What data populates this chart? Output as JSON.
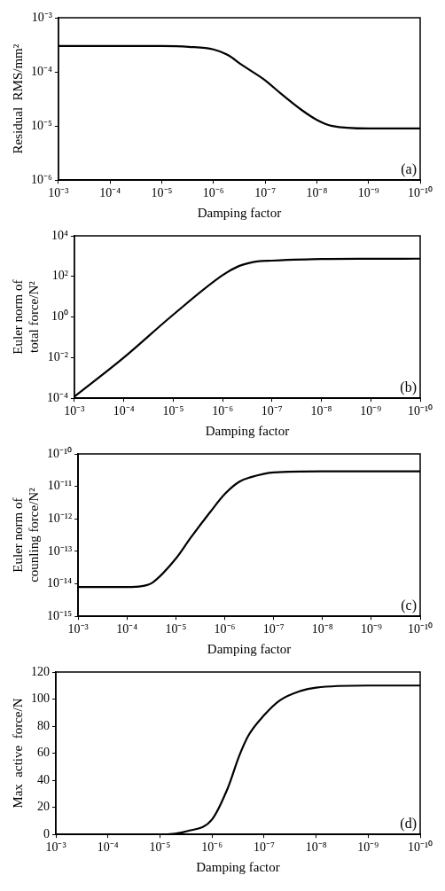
{
  "chart_data": [
    {
      "type": "line",
      "xlabel": "Damping factor",
      "ylabel": "Residual  RMS/mm²",
      "log": "xy",
      "grid": false,
      "marker": "none",
      "annotations": [
        "(a)"
      ],
      "xlim": [
        0.001,
        1e-10
      ],
      "xticks": [
        {
          "value": 0.001,
          "label": "10⁻³"
        },
        {
          "value": 0.0001,
          "label": "10⁻⁴"
        },
        {
          "value": 1e-05,
          "label": "10⁻⁵"
        },
        {
          "value": 1e-06,
          "label": "10⁻⁶"
        },
        {
          "value": 1e-07,
          "label": "10⁻⁷"
        },
        {
          "value": 1e-08,
          "label": "10⁻⁸"
        },
        {
          "value": 1e-09,
          "label": "10⁻⁹"
        },
        {
          "value": 1e-10,
          "label": "10⁻¹⁰"
        }
      ],
      "ylim": [
        1e-06,
        0.001
      ],
      "yticks": [
        {
          "value": 1e-06,
          "label": "10⁻⁶"
        },
        {
          "value": 1e-05,
          "label": "10⁻⁵"
        },
        {
          "value": 0.0001,
          "label": "10⁻⁴"
        },
        {
          "value": 0.001,
          "label": "10⁻³"
        }
      ],
      "x": [
        0.001,
        0.0001,
        1e-05,
        3e-06,
        1e-06,
        5e-07,
        3e-07,
        1e-07,
        5e-08,
        2e-08,
        1e-08,
        5e-09,
        1e-09,
        1e-10
      ],
      "series": [
        {
          "color": "#000000",
          "values": [
            0.0003,
            0.0003,
            0.0003,
            0.00029,
            0.00026,
            0.0002,
            0.00014,
            7e-05,
            4e-05,
            2e-05,
            1.3e-05,
            1e-05,
            9e-06,
            9e-06
          ]
        }
      ]
    },
    {
      "type": "line",
      "xlabel": "Damping factor",
      "ylabel": "Euler norm of total force/N²",
      "log": "xy",
      "grid": false,
      "marker": "none",
      "annotations": [
        "(b)"
      ],
      "xlim": [
        0.001,
        1e-10
      ],
      "xticks": [
        {
          "value": 0.001,
          "label": "10⁻³"
        },
        {
          "value": 0.0001,
          "label": "10⁻⁴"
        },
        {
          "value": 1e-05,
          "label": "10⁻⁵"
        },
        {
          "value": 1e-06,
          "label": "10⁻⁶"
        },
        {
          "value": 1e-07,
          "label": "10⁻⁷"
        },
        {
          "value": 1e-08,
          "label": "10⁻⁸"
        },
        {
          "value": 1e-09,
          "label": "10⁻⁹"
        },
        {
          "value": 1e-10,
          "label": "10⁻¹⁰"
        }
      ],
      "ylim": [
        0.0001,
        10000
      ],
      "yticks": [
        {
          "value": 0.0001,
          "label": "10⁻⁴"
        },
        {
          "value": 0.01,
          "label": "10⁻²"
        },
        {
          "value": 1,
          "label": "10⁰"
        },
        {
          "value": 100,
          "label": "10²"
        },
        {
          "value": 10000,
          "label": "10⁴"
        }
      ],
      "x": [
        0.001,
        0.0001,
        1e-05,
        1e-06,
        5e-07,
        3e-07,
        2e-07,
        1e-07,
        1e-08,
        1e-09,
        1e-10
      ],
      "series": [
        {
          "color": "#000000",
          "values": [
            0.00012,
            0.01,
            1.3,
            115,
            300,
            450,
            550,
            600,
            720,
            740,
            750
          ]
        }
      ]
    },
    {
      "type": "line",
      "xlabel": "Damping factor",
      "ylabel": "Euler norm of counling force/N²",
      "log": "xy",
      "grid": false,
      "marker": "none",
      "annotations": [
        "(c)"
      ],
      "xlim": [
        0.001,
        1e-10
      ],
      "xticks": [
        {
          "value": 0.001,
          "label": "10⁻³"
        },
        {
          "value": 0.0001,
          "label": "10⁻⁴"
        },
        {
          "value": 1e-05,
          "label": "10⁻⁵"
        },
        {
          "value": 1e-06,
          "label": "10⁻⁶"
        },
        {
          "value": 1e-07,
          "label": "10⁻⁷"
        },
        {
          "value": 1e-08,
          "label": "10⁻⁸"
        },
        {
          "value": 1e-09,
          "label": "10⁻⁹"
        },
        {
          "value": 1e-10,
          "label": "10⁻¹⁰"
        }
      ],
      "ylim": [
        1e-15,
        1e-10
      ],
      "yticks": [
        {
          "value": 1e-15,
          "label": "10⁻¹⁵"
        },
        {
          "value": 1e-14,
          "label": "10⁻¹⁴"
        },
        {
          "value": 1e-13,
          "label": "10⁻¹³"
        },
        {
          "value": 1e-12,
          "label": "10⁻¹²"
        },
        {
          "value": 1e-11,
          "label": "10⁻¹¹"
        },
        {
          "value": 1e-10,
          "label": "10⁻¹⁰"
        }
      ],
      "x": [
        0.001,
        0.0001,
        5e-05,
        3e-05,
        1e-05,
        5e-06,
        2e-06,
        1e-06,
        5e-07,
        3e-07,
        1e-07,
        1e-08,
        1e-10
      ],
      "series": [
        {
          "color": "#000000",
          "values": [
            8e-15,
            8e-15,
            8.5e-15,
            1.1e-14,
            6e-14,
            2.6e-13,
            1.6e-12,
            5.8e-12,
            1.4e-11,
            1.9e-11,
            2.7e-11,
            2.9e-11,
            2.9e-11
          ]
        }
      ]
    },
    {
      "type": "line",
      "xlabel": "Damping factor",
      "ylabel": "Max  active  force/N",
      "log": "x",
      "grid": false,
      "marker": "none",
      "annotations": [
        "(d)"
      ],
      "xlim": [
        0.001,
        1e-10
      ],
      "xticks": [
        {
          "value": 0.001,
          "label": "10⁻³"
        },
        {
          "value": 0.0001,
          "label": "10⁻⁴"
        },
        {
          "value": 1e-05,
          "label": "10⁻⁵"
        },
        {
          "value": 1e-06,
          "label": "10⁻⁶"
        },
        {
          "value": 1e-07,
          "label": "10⁻⁷"
        },
        {
          "value": 1e-08,
          "label": "10⁻⁸"
        },
        {
          "value": 1e-09,
          "label": "10⁻⁹"
        },
        {
          "value": 1e-10,
          "label": "10⁻¹⁰"
        }
      ],
      "ylim": [
        0,
        120
      ],
      "yticks": [
        0,
        20,
        40,
        60,
        80,
        100,
        120
      ],
      "x": [
        0.001,
        0.0001,
        1e-05,
        3e-06,
        1e-06,
        5e-07,
        3e-07,
        2e-07,
        1e-07,
        5e-08,
        2e-08,
        1e-08,
        1e-09,
        1e-10
      ],
      "series": [
        {
          "color": "#000000",
          "values": [
            0,
            0,
            0,
            2.4,
            11,
            34,
            58,
            73,
            88,
            99,
            106,
            108.5,
            110,
            110
          ]
        }
      ]
    }
  ]
}
